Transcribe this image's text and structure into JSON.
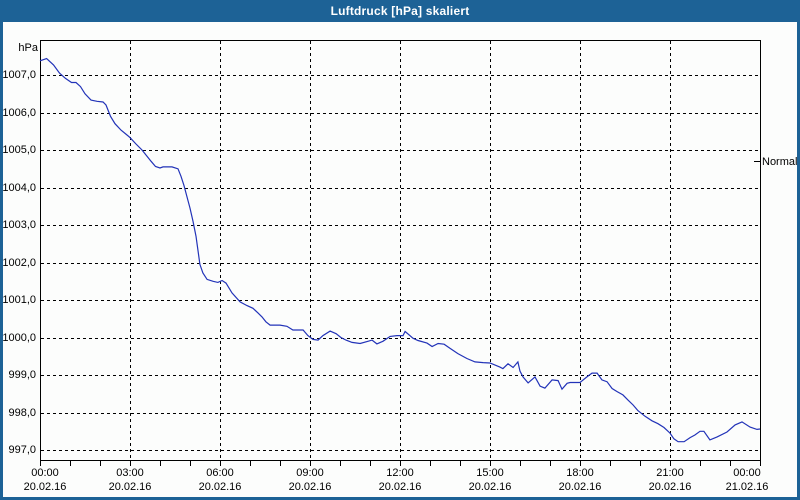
{
  "window": {
    "title": "Luftdruck [hPa] skaliert"
  },
  "colors": {
    "titlebar": "#1d6296",
    "window_border": "#1d6296",
    "background": "#fcfdfc",
    "line": "#2233b8",
    "grid": "#000000",
    "text": "#000000"
  },
  "chart_data": {
    "type": "line",
    "title": "Luftdruck [hPa] skaliert",
    "ylabel": "hPa",
    "xlabel": "",
    "grid": true,
    "legend_position": "none",
    "y_axis": {
      "unit_label": "hPa",
      "tick_labels": [
        "1007,0",
        "1006,0",
        "1005,0",
        "1004,0",
        "1003,0",
        "1002,0",
        "1001,0",
        "1000,0",
        "999,0",
        "998,0",
        "997,0"
      ],
      "tick_values": [
        1007,
        1006,
        1005,
        1004,
        1003,
        1002,
        1001,
        1000,
        999,
        998,
        997
      ],
      "ylim": [
        996.7,
        1007.9
      ],
      "grid_style": "dashed"
    },
    "x_axis": {
      "range_hours": [
        0,
        24
      ],
      "tick_hours": [
        0,
        3,
        6,
        9,
        12,
        15,
        18,
        21,
        24
      ],
      "tick_times": [
        "00:00",
        "03:00",
        "06:00",
        "09:00",
        "12:00",
        "15:00",
        "18:00",
        "21:00",
        "00:00"
      ],
      "tick_dates": [
        "20.02.16",
        "20.02.16",
        "20.02.16",
        "20.02.16",
        "20.02.16",
        "20.02.16",
        "20.02.16",
        "20.02.16",
        "21.02.16"
      ],
      "minor_tick_every_hours": 1,
      "grid_style": "dashed"
    },
    "right_marker": {
      "label": "Normal",
      "value": 1004.7
    },
    "series": [
      {
        "name": "Luftdruck",
        "color": "#2233b8",
        "points": [
          [
            0.0,
            1007.38
          ],
          [
            0.22,
            1007.44
          ],
          [
            0.45,
            1007.27
          ],
          [
            0.65,
            1007.05
          ],
          [
            0.85,
            1006.91
          ],
          [
            1.05,
            1006.8
          ],
          [
            1.2,
            1006.8
          ],
          [
            1.35,
            1006.69
          ],
          [
            1.5,
            1006.5
          ],
          [
            1.7,
            1006.33
          ],
          [
            1.9,
            1006.3
          ],
          [
            2.1,
            1006.28
          ],
          [
            2.2,
            1006.2
          ],
          [
            2.35,
            1005.9
          ],
          [
            2.5,
            1005.7
          ],
          [
            2.7,
            1005.53
          ],
          [
            2.9,
            1005.4
          ],
          [
            3.0,
            1005.33
          ],
          [
            3.2,
            1005.16
          ],
          [
            3.4,
            1005.0
          ],
          [
            3.55,
            1004.85
          ],
          [
            3.7,
            1004.7
          ],
          [
            3.85,
            1004.56
          ],
          [
            4.0,
            1004.52
          ],
          [
            4.1,
            1004.55
          ],
          [
            4.4,
            1004.55
          ],
          [
            4.6,
            1004.5
          ],
          [
            4.7,
            1004.3
          ],
          [
            4.8,
            1004.05
          ],
          [
            4.9,
            1003.75
          ],
          [
            5.0,
            1003.45
          ],
          [
            5.1,
            1003.1
          ],
          [
            5.2,
            1002.7
          ],
          [
            5.27,
            1002.3
          ],
          [
            5.33,
            1001.95
          ],
          [
            5.43,
            1001.72
          ],
          [
            5.57,
            1001.55
          ],
          [
            5.77,
            1001.5
          ],
          [
            5.93,
            1001.47
          ],
          [
            6.07,
            1001.52
          ],
          [
            6.2,
            1001.45
          ],
          [
            6.4,
            1001.19
          ],
          [
            6.67,
            1000.95
          ],
          [
            6.9,
            1000.85
          ],
          [
            7.1,
            1000.78
          ],
          [
            7.27,
            1000.65
          ],
          [
            7.4,
            1000.55
          ],
          [
            7.53,
            1000.42
          ],
          [
            7.67,
            1000.33
          ],
          [
            8.0,
            1000.33
          ],
          [
            8.23,
            1000.3
          ],
          [
            8.43,
            1000.2
          ],
          [
            8.77,
            1000.2
          ],
          [
            8.93,
            1000.05
          ],
          [
            9.1,
            999.95
          ],
          [
            9.27,
            999.93
          ],
          [
            9.43,
            1000.05
          ],
          [
            9.67,
            1000.17
          ],
          [
            9.87,
            1000.1
          ],
          [
            10.03,
            1000.0
          ],
          [
            10.2,
            999.93
          ],
          [
            10.4,
            999.87
          ],
          [
            10.67,
            999.84
          ],
          [
            10.93,
            999.9
          ],
          [
            11.07,
            999.93
          ],
          [
            11.23,
            999.83
          ],
          [
            11.43,
            999.9
          ],
          [
            11.67,
            1000.03
          ],
          [
            11.9,
            1000.05
          ],
          [
            12.1,
            1000.05
          ],
          [
            12.17,
            1000.16
          ],
          [
            12.33,
            1000.05
          ],
          [
            12.43,
            999.98
          ],
          [
            12.6,
            999.92
          ],
          [
            12.9,
            999.85
          ],
          [
            13.07,
            999.76
          ],
          [
            13.27,
            999.84
          ],
          [
            13.47,
            999.82
          ],
          [
            13.67,
            999.71
          ],
          [
            13.93,
            999.57
          ],
          [
            14.23,
            999.44
          ],
          [
            14.5,
            999.35
          ],
          [
            14.77,
            999.33
          ],
          [
            15.0,
            999.32
          ],
          [
            15.33,
            999.21
          ],
          [
            15.43,
            999.17
          ],
          [
            15.6,
            999.3
          ],
          [
            15.77,
            999.2
          ],
          [
            15.93,
            999.35
          ],
          [
            16.0,
            999.1
          ],
          [
            16.1,
            998.95
          ],
          [
            16.27,
            998.79
          ],
          [
            16.5,
            998.95
          ],
          [
            16.67,
            998.7
          ],
          [
            16.83,
            998.65
          ],
          [
            17.07,
            998.87
          ],
          [
            17.27,
            998.85
          ],
          [
            17.4,
            998.62
          ],
          [
            17.57,
            998.78
          ],
          [
            17.67,
            998.8
          ],
          [
            18.0,
            998.8
          ],
          [
            18.23,
            998.95
          ],
          [
            18.4,
            999.05
          ],
          [
            18.57,
            999.05
          ],
          [
            18.73,
            998.87
          ],
          [
            18.9,
            998.82
          ],
          [
            19.07,
            998.64
          ],
          [
            19.23,
            998.56
          ],
          [
            19.43,
            998.47
          ],
          [
            19.6,
            998.33
          ],
          [
            19.77,
            998.2
          ],
          [
            19.93,
            998.05
          ],
          [
            20.17,
            997.9
          ],
          [
            20.4,
            997.78
          ],
          [
            20.6,
            997.7
          ],
          [
            20.8,
            997.6
          ],
          [
            21.0,
            997.45
          ],
          [
            21.13,
            997.3
          ],
          [
            21.27,
            997.22
          ],
          [
            21.47,
            997.22
          ],
          [
            21.67,
            997.33
          ],
          [
            21.83,
            997.4
          ],
          [
            22.0,
            997.5
          ],
          [
            22.13,
            997.5
          ],
          [
            22.33,
            997.27
          ],
          [
            22.57,
            997.35
          ],
          [
            22.9,
            997.48
          ],
          [
            23.17,
            997.67
          ],
          [
            23.4,
            997.75
          ],
          [
            23.67,
            997.61
          ],
          [
            23.9,
            997.55
          ],
          [
            24.0,
            997.56
          ]
        ]
      }
    ]
  }
}
